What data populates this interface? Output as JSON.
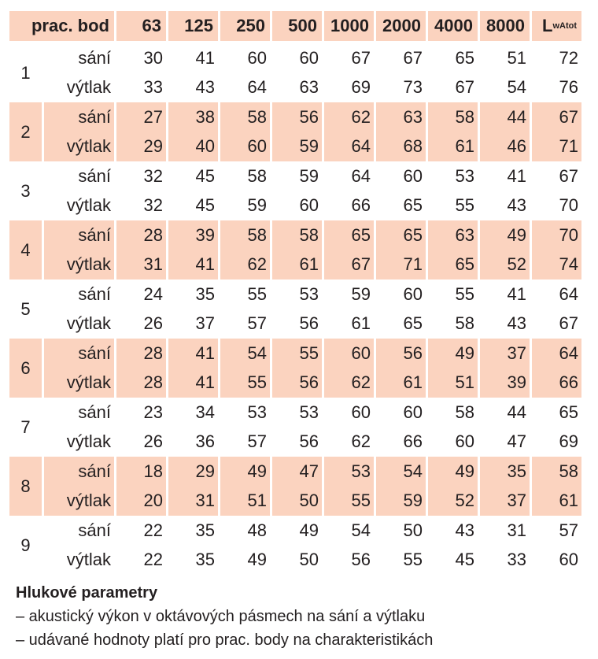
{
  "header": {
    "first": "prac. bod",
    "bands": [
      "63",
      "125",
      "250",
      "500",
      "1000",
      "2000",
      "4000",
      "8000"
    ],
    "total_main": "L",
    "total_sub": "wAtot"
  },
  "labels": {
    "suction": "sání",
    "discharge": "výtlak"
  },
  "shade_color": "#fbd3bf",
  "groups": [
    {
      "id": "1",
      "sani": [
        30,
        41,
        60,
        60,
        67,
        67,
        65,
        51,
        72
      ],
      "vytlak": [
        33,
        43,
        64,
        63,
        69,
        73,
        67,
        54,
        76
      ]
    },
    {
      "id": "2",
      "sani": [
        27,
        38,
        58,
        56,
        62,
        63,
        58,
        44,
        67
      ],
      "vytlak": [
        29,
        40,
        60,
        59,
        64,
        68,
        61,
        46,
        71
      ]
    },
    {
      "id": "3",
      "sani": [
        32,
        45,
        58,
        59,
        64,
        60,
        53,
        41,
        67
      ],
      "vytlak": [
        32,
        45,
        59,
        60,
        66,
        65,
        55,
        43,
        70
      ]
    },
    {
      "id": "4",
      "sani": [
        28,
        39,
        58,
        58,
        65,
        65,
        63,
        49,
        70
      ],
      "vytlak": [
        31,
        41,
        62,
        61,
        67,
        71,
        65,
        52,
        74
      ]
    },
    {
      "id": "5",
      "sani": [
        24,
        35,
        55,
        53,
        59,
        60,
        55,
        41,
        64
      ],
      "vytlak": [
        26,
        37,
        57,
        56,
        61,
        65,
        58,
        43,
        67
      ]
    },
    {
      "id": "6",
      "sani": [
        28,
        41,
        54,
        55,
        60,
        56,
        49,
        37,
        64
      ],
      "vytlak": [
        28,
        41,
        55,
        56,
        62,
        61,
        51,
        39,
        66
      ]
    },
    {
      "id": "7",
      "sani": [
        23,
        34,
        53,
        53,
        60,
        60,
        58,
        44,
        65
      ],
      "vytlak": [
        26,
        36,
        57,
        56,
        62,
        66,
        60,
        47,
        69
      ]
    },
    {
      "id": "8",
      "sani": [
        18,
        29,
        49,
        47,
        53,
        54,
        49,
        35,
        58
      ],
      "vytlak": [
        20,
        31,
        51,
        50,
        55,
        59,
        52,
        37,
        61
      ]
    },
    {
      "id": "9",
      "sani": [
        22,
        35,
        48,
        49,
        54,
        50,
        43,
        31,
        57
      ],
      "vytlak": [
        22,
        35,
        49,
        50,
        56,
        55,
        45,
        33,
        60
      ]
    }
  ],
  "footer": {
    "title": "Hlukové parametry",
    "lines": [
      "– akustický výkon v oktávových pásmech na sání a výtlaku",
      "– udávané hodnoty platí pro prac. body na charakteristikách"
    ]
  }
}
